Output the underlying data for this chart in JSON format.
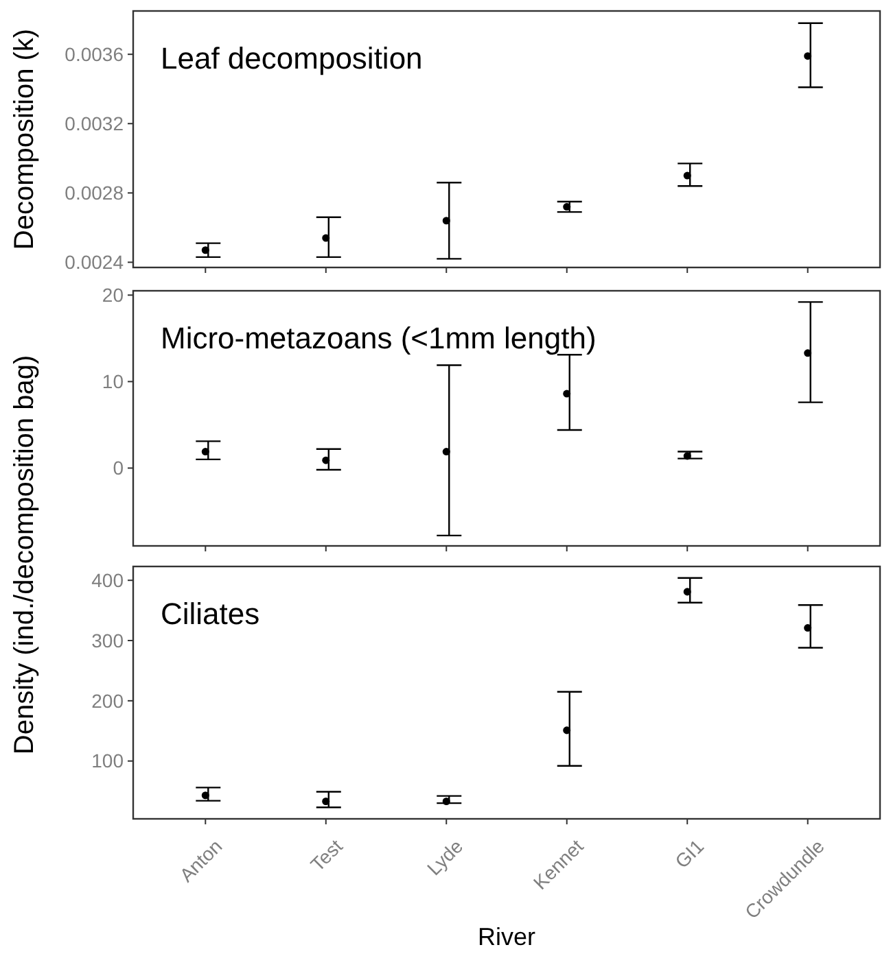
{
  "chart_data": [
    {
      "type": "scatter",
      "title": "Leaf decomposition",
      "ylabel": "Decomposition (k)",
      "categories": [
        "Anton",
        "Test",
        "Lyde",
        "Kennet",
        "GI1",
        "Crowdundle"
      ],
      "values": [
        0.00247,
        0.00254,
        0.00264,
        0.00272,
        0.0029,
        0.00359
      ],
      "errors": [
        [
          0.00243,
          0.00251
        ],
        [
          0.00243,
          0.00266
        ],
        [
          0.00242,
          0.00286
        ],
        [
          0.00269,
          0.00275
        ],
        [
          0.00284,
          0.00297
        ],
        [
          0.00341,
          0.00378
        ]
      ],
      "color": "#000000",
      "marker": "circle",
      "ylim": [
        0.00237,
        0.00385
      ],
      "yticks": [
        0.0024,
        0.0028,
        0.0032,
        0.0036
      ],
      "tick_labels": "y",
      "grid": false
    },
    {
      "type": "scatter",
      "title": "Micro-metazoans (<1mm length)",
      "ylabel": "Density (ind./decomposition bag)",
      "categories": [
        "Anton",
        "Test",
        "Lyde",
        "Kennet",
        "GI1",
        "Crowdundle"
      ],
      "values": [
        1.9,
        0.9,
        1.9,
        8.6,
        1.4,
        13.3
      ],
      "errors": [
        [
          1.0,
          3.1
        ],
        [
          -0.2,
          2.2
        ],
        [
          -7.8,
          11.9
        ],
        [
          4.4,
          13.1
        ],
        [
          1.1,
          1.9
        ],
        [
          7.6,
          19.2
        ]
      ],
      "color": "#000000",
      "marker": "circle",
      "ylim": [
        -9,
        20.5
      ],
      "yticks": [
        0,
        10,
        20
      ],
      "tick_labels": "y",
      "grid": false
    },
    {
      "type": "scatter",
      "title": "Ciliates",
      "xlabel": "River",
      "categories": [
        "Anton",
        "Test",
        "Lyde",
        "Kennet",
        "GI1",
        "Crowdundle"
      ],
      "values": [
        43,
        33,
        33,
        151,
        381,
        321
      ],
      "errors": [
        [
          34,
          56
        ],
        [
          23,
          49
        ],
        [
          30,
          42
        ],
        [
          92,
          215
        ],
        [
          363,
          404
        ],
        [
          288,
          359
        ]
      ],
      "color": "#000000",
      "marker": "circle",
      "ylim": [
        4,
        423
      ],
      "yticks": [
        100,
        200,
        300,
        400
      ],
      "grid": false
    }
  ]
}
